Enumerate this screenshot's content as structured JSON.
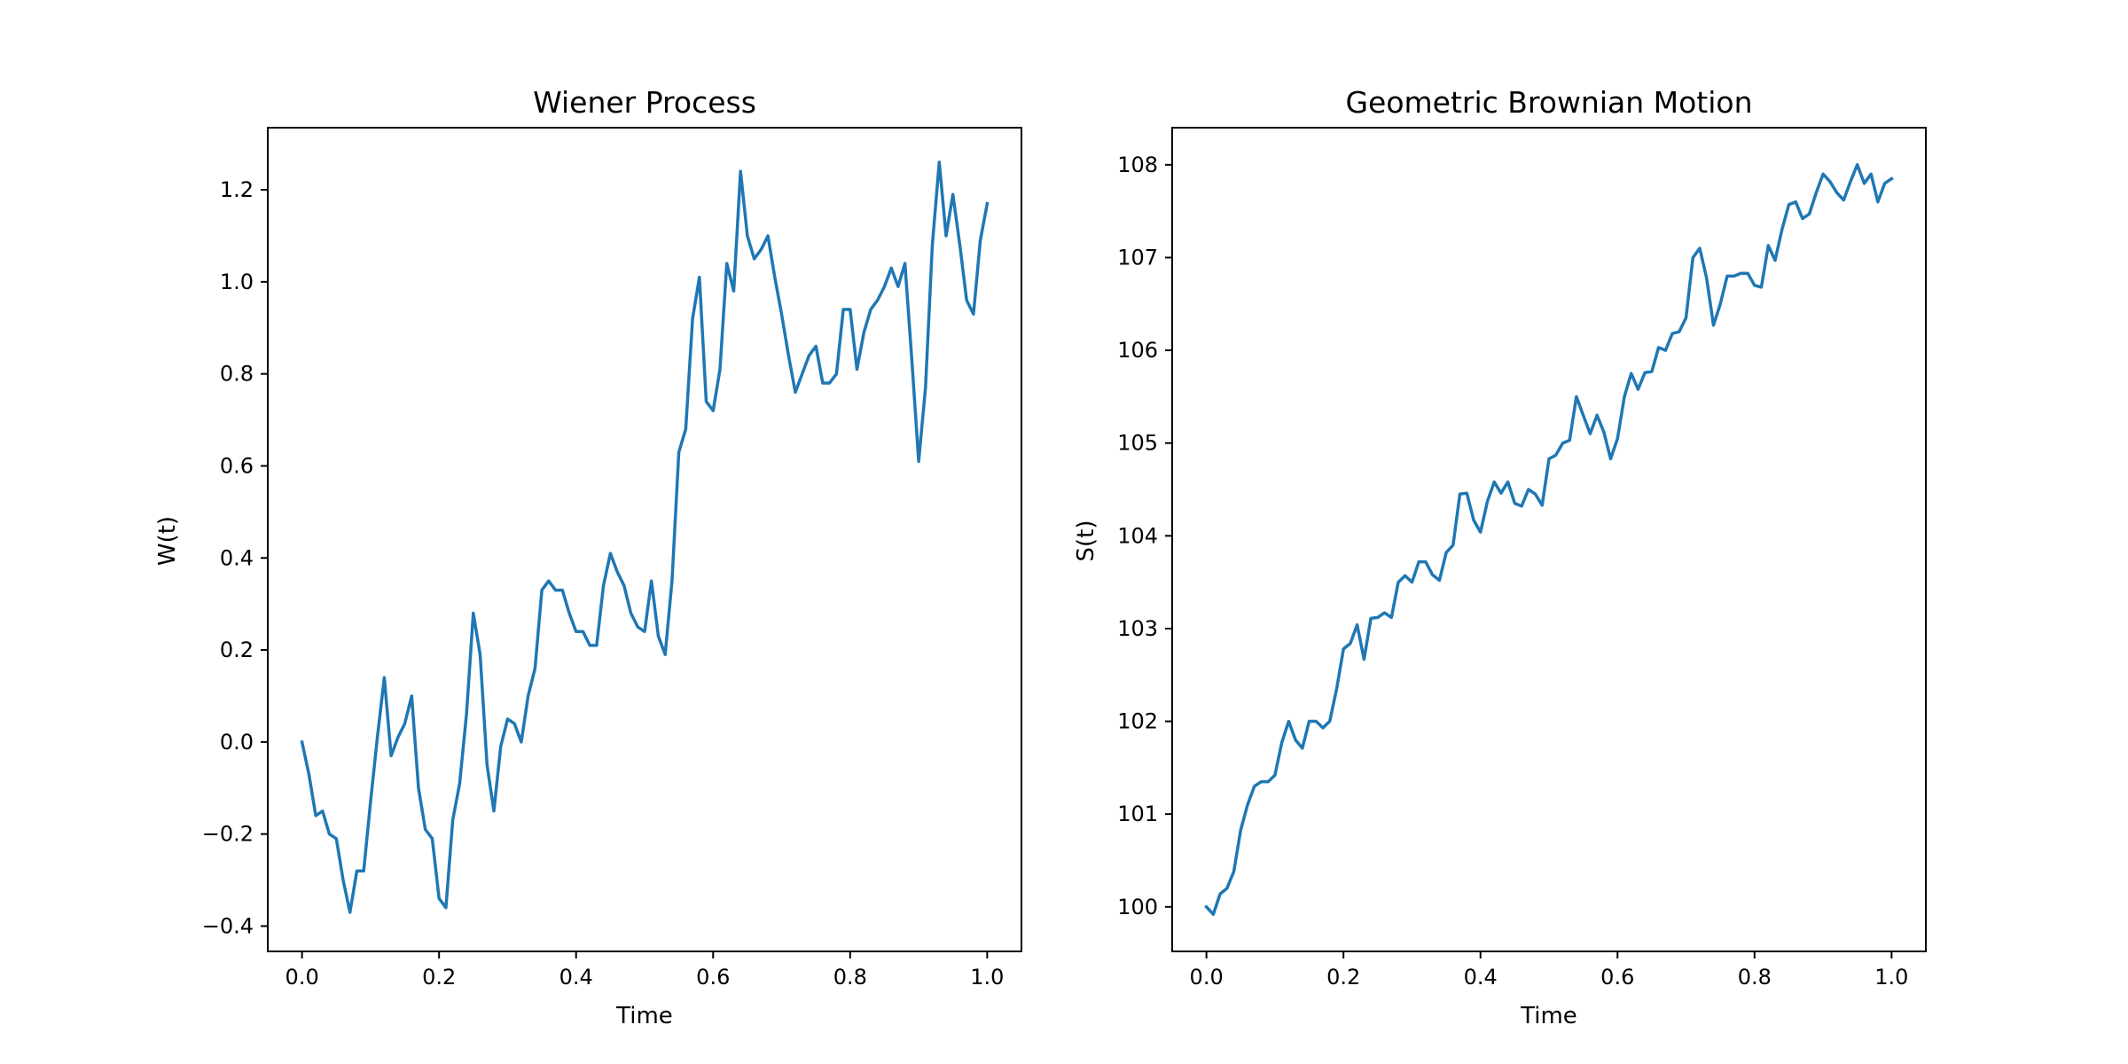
{
  "chart_data": [
    {
      "type": "line",
      "title": "Wiener Process",
      "xlabel": "Time",
      "ylabel": "W(t)",
      "xlim": [
        -0.05,
        1.05
      ],
      "ylim": [
        -0.455,
        1.335
      ],
      "xticks": [
        0.0,
        0.2,
        0.4,
        0.6,
        0.8,
        1.0
      ],
      "xtick_labels": [
        "0.0",
        "0.2",
        "0.4",
        "0.6",
        "0.8",
        "1.0"
      ],
      "yticks": [
        -0.4,
        -0.2,
        0.0,
        0.2,
        0.4,
        0.6,
        0.8,
        1.0,
        1.2
      ],
      "ytick_labels": [
        "−0.4",
        "−0.2",
        "0.0",
        "0.2",
        "0.4",
        "0.6",
        "0.8",
        "1.0",
        "1.2"
      ],
      "grid": false,
      "line_color": "#1f77b4",
      "series": [
        {
          "x": [
            0.0,
            0.01,
            0.02,
            0.03,
            0.04,
            0.05,
            0.06,
            0.07,
            0.08,
            0.09,
            0.1,
            0.11,
            0.12,
            0.13,
            0.14,
            0.15,
            0.16,
            0.17,
            0.18,
            0.19,
            0.2,
            0.21,
            0.22,
            0.23,
            0.24,
            0.25,
            0.26,
            0.27,
            0.28,
            0.29,
            0.3,
            0.31,
            0.32,
            0.33,
            0.34,
            0.35,
            0.36,
            0.37,
            0.38,
            0.39,
            0.4,
            0.41,
            0.42,
            0.43,
            0.44,
            0.45,
            0.46,
            0.47,
            0.48,
            0.49,
            0.5,
            0.51,
            0.52,
            0.53,
            0.54,
            0.55,
            0.56,
            0.57,
            0.58,
            0.59,
            0.6,
            0.61,
            0.62,
            0.63,
            0.64,
            0.65,
            0.66,
            0.67,
            0.68,
            0.69,
            0.7,
            0.71,
            0.72,
            0.73,
            0.74,
            0.75,
            0.76,
            0.77,
            0.78,
            0.79,
            0.8,
            0.81,
            0.82,
            0.83,
            0.84,
            0.85,
            0.86,
            0.87,
            0.88,
            0.89,
            0.9,
            0.91,
            0.92,
            0.93,
            0.94,
            0.95,
            0.96,
            0.97,
            0.98,
            0.99,
            1.0
          ],
          "y": [
            0.0,
            -0.07,
            -0.16,
            -0.15,
            -0.2,
            -0.21,
            -0.3,
            -0.37,
            -0.28,
            -0.28,
            -0.13,
            0.01,
            0.14,
            -0.03,
            0.01,
            0.04,
            0.1,
            -0.1,
            -0.19,
            -0.21,
            -0.34,
            -0.36,
            -0.17,
            -0.09,
            0.06,
            0.28,
            0.19,
            -0.05,
            -0.15,
            -0.01,
            0.05,
            0.04,
            0.0,
            0.1,
            0.16,
            0.33,
            0.35,
            0.33,
            0.33,
            0.28,
            0.24,
            0.24,
            0.21,
            0.21,
            0.34,
            0.41,
            0.37,
            0.34,
            0.28,
            0.25,
            0.24,
            0.35,
            0.23,
            0.19,
            0.35,
            0.63,
            0.68,
            0.92,
            1.01,
            0.74,
            0.72,
            0.81,
            1.04,
            0.98,
            1.24,
            1.1,
            1.05,
            1.07,
            1.1,
            1.01,
            0.93,
            0.84,
            0.76,
            0.8,
            0.84,
            0.86,
            0.78,
            0.78,
            0.8,
            0.94,
            0.94,
            0.81,
            0.89,
            0.94,
            0.96,
            0.99,
            1.03,
            0.99,
            1.04,
            0.83,
            0.61,
            0.77,
            1.08,
            1.26,
            1.1,
            1.19,
            1.08,
            0.96,
            0.93,
            1.09,
            1.17
          ]
        }
      ]
    },
    {
      "type": "line",
      "title": "Geometric Brownian Motion",
      "xlabel": "Time",
      "ylabel": "S(t)",
      "xlim": [
        -0.05,
        1.05
      ],
      "ylim": [
        99.52,
        108.4
      ],
      "xticks": [
        0.0,
        0.2,
        0.4,
        0.6,
        0.8,
        1.0
      ],
      "xtick_labels": [
        "0.0",
        "0.2",
        "0.4",
        "0.6",
        "0.8",
        "1.0"
      ],
      "yticks": [
        100,
        101,
        102,
        103,
        104,
        105,
        106,
        107,
        108
      ],
      "ytick_labels": [
        "100",
        "101",
        "102",
        "103",
        "104",
        "105",
        "106",
        "107",
        "108"
      ],
      "grid": false,
      "line_color": "#1f77b4",
      "series": [
        {
          "x": [
            0.0,
            0.01,
            0.02,
            0.03,
            0.04,
            0.05,
            0.06,
            0.07,
            0.08,
            0.09,
            0.1,
            0.11,
            0.12,
            0.13,
            0.14,
            0.15,
            0.16,
            0.17,
            0.18,
            0.19,
            0.2,
            0.21,
            0.22,
            0.23,
            0.24,
            0.25,
            0.26,
            0.27,
            0.28,
            0.29,
            0.3,
            0.31,
            0.32,
            0.33,
            0.34,
            0.35,
            0.36,
            0.37,
            0.38,
            0.39,
            0.4,
            0.41,
            0.42,
            0.43,
            0.44,
            0.45,
            0.46,
            0.47,
            0.48,
            0.49,
            0.5,
            0.51,
            0.52,
            0.53,
            0.54,
            0.55,
            0.56,
            0.57,
            0.58,
            0.59,
            0.6,
            0.61,
            0.62,
            0.63,
            0.64,
            0.65,
            0.66,
            0.67,
            0.68,
            0.69,
            0.7,
            0.71,
            0.72,
            0.73,
            0.74,
            0.75,
            0.76,
            0.77,
            0.78,
            0.79,
            0.8,
            0.81,
            0.82,
            0.83,
            0.84,
            0.85,
            0.86,
            0.87,
            0.88,
            0.89,
            0.9,
            0.91,
            0.92,
            0.93,
            0.94,
            0.95,
            0.96,
            0.97,
            0.98,
            0.99,
            1.0
          ],
          "y": [
            100.0,
            99.92,
            100.14,
            100.2,
            100.38,
            100.83,
            101.1,
            101.3,
            101.35,
            101.35,
            101.42,
            101.77,
            102.0,
            101.8,
            101.71,
            102.0,
            102.0,
            101.93,
            102.0,
            102.35,
            102.78,
            102.84,
            103.04,
            102.67,
            103.11,
            103.12,
            103.17,
            103.12,
            103.5,
            103.57,
            103.5,
            103.72,
            103.72,
            103.58,
            103.52,
            103.82,
            103.9,
            104.45,
            104.46,
            104.17,
            104.04,
            104.37,
            104.58,
            104.46,
            104.58,
            104.35,
            104.32,
            104.5,
            104.45,
            104.33,
            104.83,
            104.87,
            105.0,
            105.03,
            105.5,
            105.3,
            105.1,
            105.3,
            105.12,
            104.83,
            105.05,
            105.5,
            105.75,
            105.58,
            105.76,
            105.77,
            106.03,
            106.0,
            106.18,
            106.2,
            106.35,
            107.0,
            107.1,
            106.78,
            106.27,
            106.5,
            106.8,
            106.8,
            106.83,
            106.83,
            106.7,
            106.68,
            107.13,
            106.97,
            107.3,
            107.57,
            107.6,
            107.42,
            107.47,
            107.7,
            107.9,
            107.82,
            107.7,
            107.62,
            107.82,
            108.0,
            107.8,
            107.9,
            107.6,
            107.8,
            107.85
          ]
        }
      ]
    }
  ]
}
